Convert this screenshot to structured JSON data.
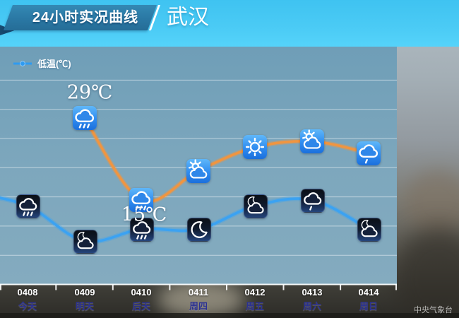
{
  "header": {
    "title": "24小时实况曲线",
    "city": "武汉"
  },
  "legend": {
    "label": "低温(℃)",
    "marker_icon": "blue-line-dot-icon",
    "marker_color": "#2f9bf0"
  },
  "watermark": "中央气象台",
  "colors": {
    "header_band": "#4bcbf5",
    "banner": "#2a78a4",
    "chart_background": "#7da7bd",
    "high_line": "#f09540",
    "low_line": "#3ba2f2",
    "date_label": "#ffffff",
    "day_label": "#2b3191",
    "gridline": "rgba(255,255,255,0.5)"
  },
  "chart_data": {
    "type": "line",
    "title": "24小时实况曲线",
    "city": "武汉",
    "categories": [
      {
        "date": "0408",
        "day": "今天"
      },
      {
        "date": "0409",
        "day": "明天"
      },
      {
        "date": "0410",
        "day": "后天"
      },
      {
        "date": "0411",
        "day": "周四"
      },
      {
        "date": "0412",
        "day": "周五"
      },
      {
        "date": "0413",
        "day": "周六"
      },
      {
        "date": "0414",
        "day": "周日"
      }
    ],
    "series": [
      {
        "name": "high",
        "color": "#f09540",
        "icon_style": "day",
        "values": [
          null,
          29,
          15,
          20,
          24,
          25,
          23
        ],
        "icons": [
          null,
          "rain",
          "rain",
          "cloudy-sun",
          "sunny",
          "cloudy-sun",
          "light-rain"
        ]
      },
      {
        "name": "low",
        "legend_label": "低温(℃)",
        "color": "#3ba2f2",
        "icon_style": "night",
        "values": [
          14,
          8,
          10,
          10,
          14,
          15,
          10
        ],
        "icons": [
          "rain",
          "cloudy-moon",
          "rain",
          "moon",
          "cloudy-moon",
          "light-rain",
          "cloudy-moon"
        ]
      }
    ],
    "values_estimated_except_labeled": true,
    "point_labels": [
      {
        "series": 0,
        "index": 1,
        "text": "29℃",
        "position": "above"
      },
      {
        "series": 0,
        "index": 2,
        "text": "15℃",
        "position": "below"
      }
    ],
    "legend_position": "top-left",
    "grid": true
  }
}
